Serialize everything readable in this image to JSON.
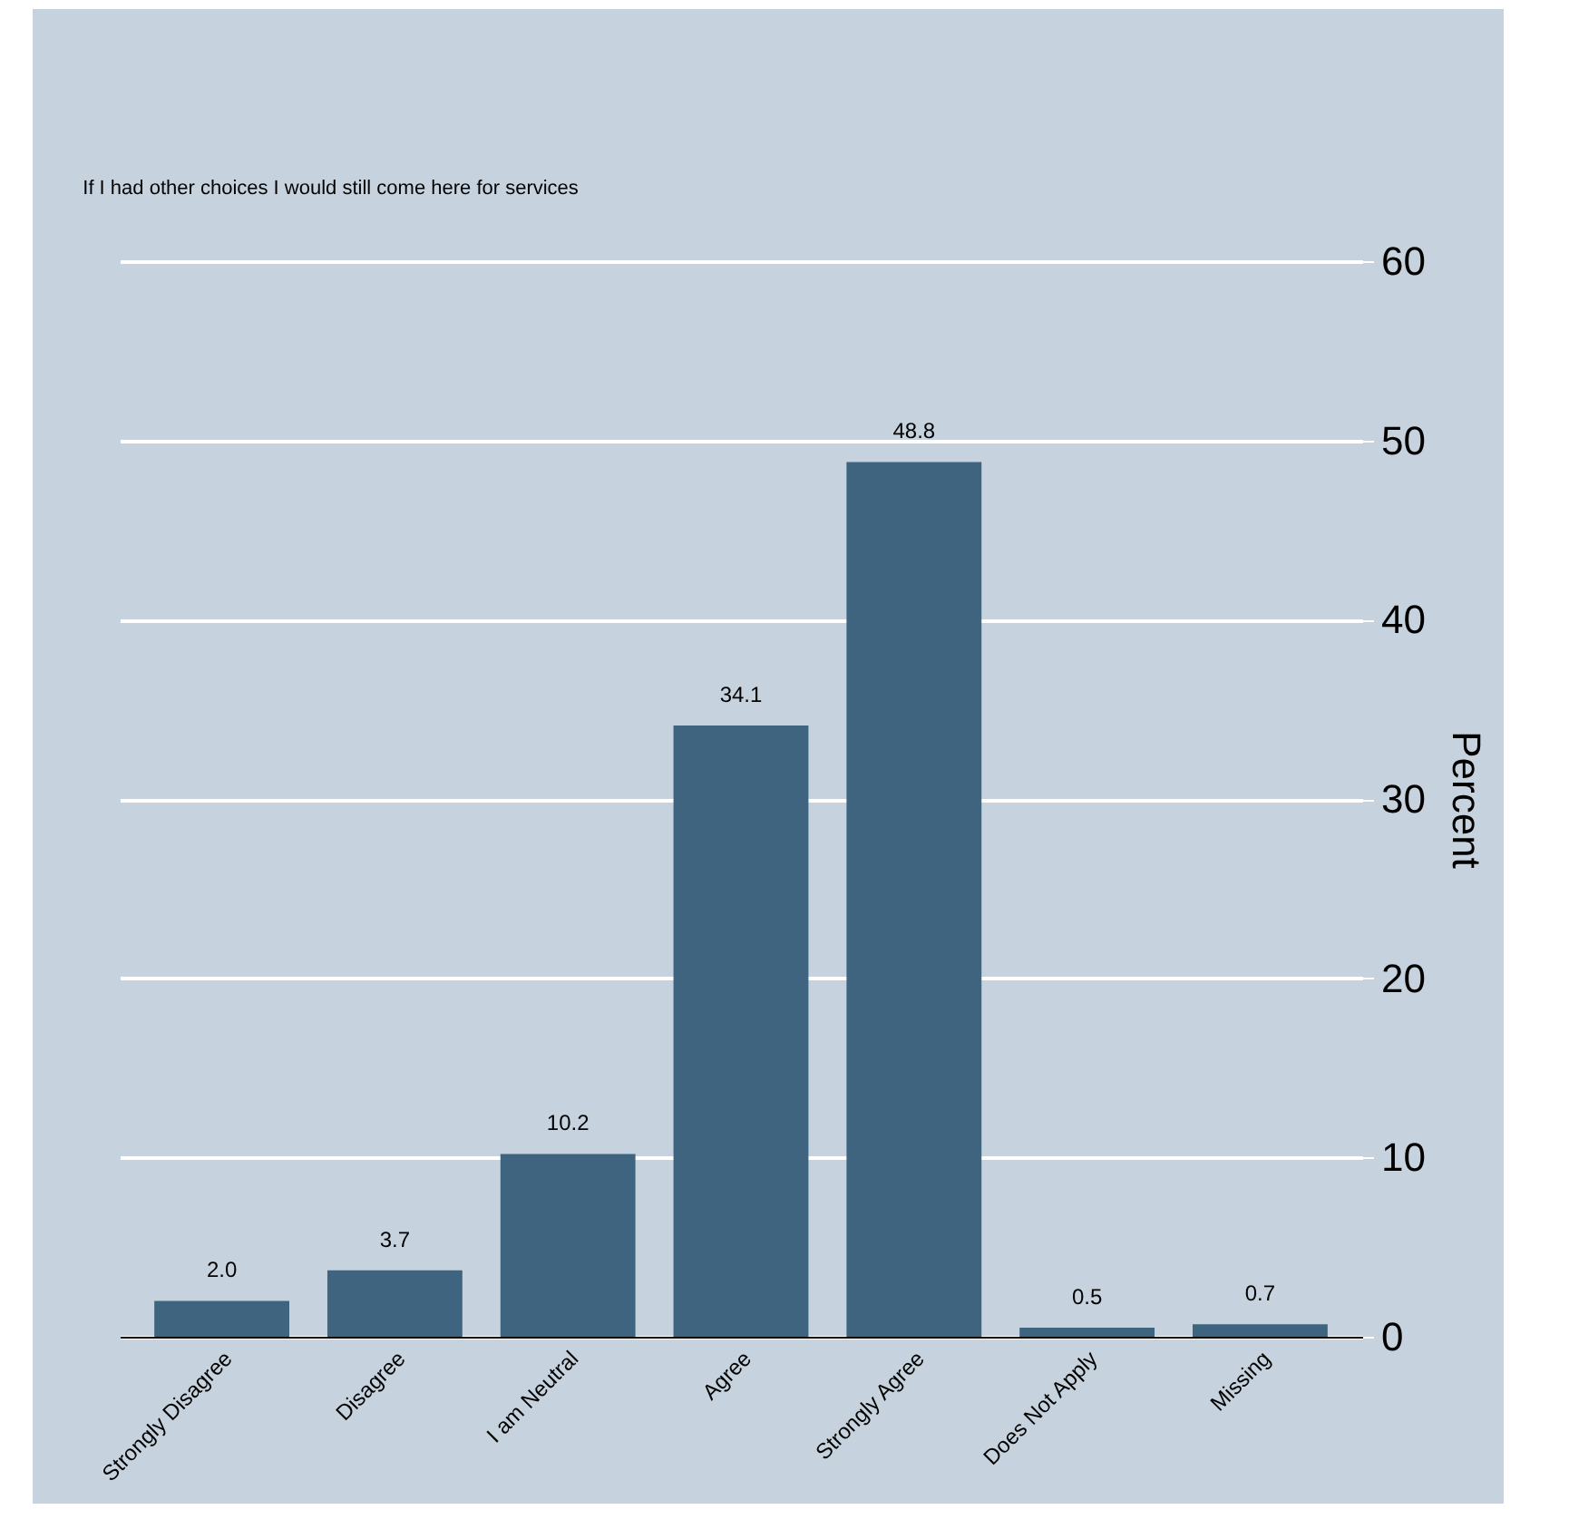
{
  "chart_data": {
    "type": "bar",
    "title": "If I had other choices I would still come here for services",
    "ylabel": "Percent",
    "categories": [
      "Strongly Disagree",
      "Disagree",
      "I am Neutral",
      "Agree",
      "Strongly Agree",
      "Does Not Apply",
      "Missing"
    ],
    "values": [
      2.0,
      3.7,
      10.2,
      34.1,
      48.8,
      0.5,
      0.7
    ],
    "value_labels": [
      "2.0",
      "3.7",
      "10.2",
      "34.1",
      "48.8",
      "0.5",
      "0.7"
    ],
    "color": "#3e6480",
    "ylim": [
      0,
      60
    ],
    "yticks": [
      0,
      10,
      20,
      30,
      40,
      50,
      60
    ],
    "grid": "y"
  }
}
